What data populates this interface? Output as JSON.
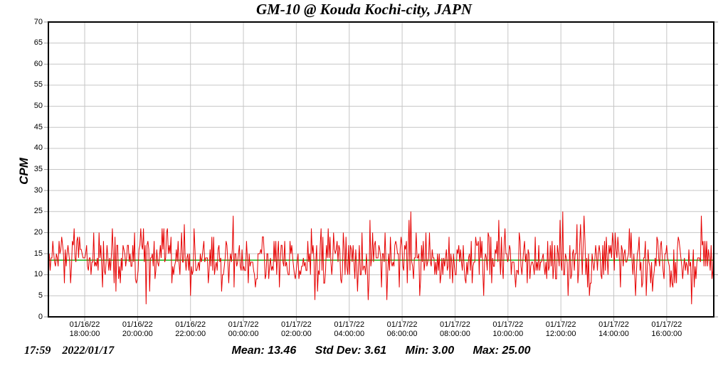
{
  "chart_data": {
    "type": "line",
    "title": "GM-10 @ Kouda Kochi-city, JAPN",
    "ylabel": "CPM",
    "ylim": [
      0,
      70
    ],
    "ytick_step": 5,
    "ytick_labels": [
      "0",
      "5",
      "10",
      "15",
      "20",
      "25",
      "30",
      "35",
      "40",
      "45",
      "50",
      "55",
      "60",
      "65",
      "70"
    ],
    "x_ticks": [
      {
        "date": "01/16/22",
        "time": "18:00:00"
      },
      {
        "date": "01/16/22",
        "time": "20:00:00"
      },
      {
        "date": "01/16/22",
        "time": "22:00:00"
      },
      {
        "date": "01/17/22",
        "time": "00:00:00"
      },
      {
        "date": "01/17/22",
        "time": "02:00:00"
      },
      {
        "date": "01/17/22",
        "time": "04:00:00"
      },
      {
        "date": "01/17/22",
        "time": "06:00:00"
      },
      {
        "date": "01/17/22",
        "time": "08:00:00"
      },
      {
        "date": "01/17/22",
        "time": "10:00:00"
      },
      {
        "date": "01/17/22",
        "time": "12:00:00"
      },
      {
        "date": "01/17/22",
        "time": "14:00:00"
      },
      {
        "date": "01/17/22",
        "time": "16:00:00"
      }
    ],
    "grid": true,
    "legend_position": "none",
    "series": [
      {
        "name": "CPM",
        "description": "dense noisy counts-per-minute trace spanning full x range",
        "mean": 13.46,
        "std_dev": 3.61,
        "min": 3,
        "max": 25,
        "n_points": 750,
        "seed": 12345
      }
    ],
    "mean_line": {
      "value": 13.46
    },
    "colors": {
      "series": "#e60000",
      "mean_line": "#00aa00",
      "grid": "#c6c6c6",
      "ticks": "#999999",
      "frame": "#000000"
    }
  },
  "footer": {
    "time": "17:59",
    "date": "2022/01/17",
    "stats": [
      {
        "label": "Mean:",
        "value": "13.46"
      },
      {
        "label": "Std Dev:",
        "value": "3.61"
      },
      {
        "label": "Min:",
        "value": "3.00"
      },
      {
        "label": "Max:",
        "value": "25.00"
      }
    ]
  }
}
